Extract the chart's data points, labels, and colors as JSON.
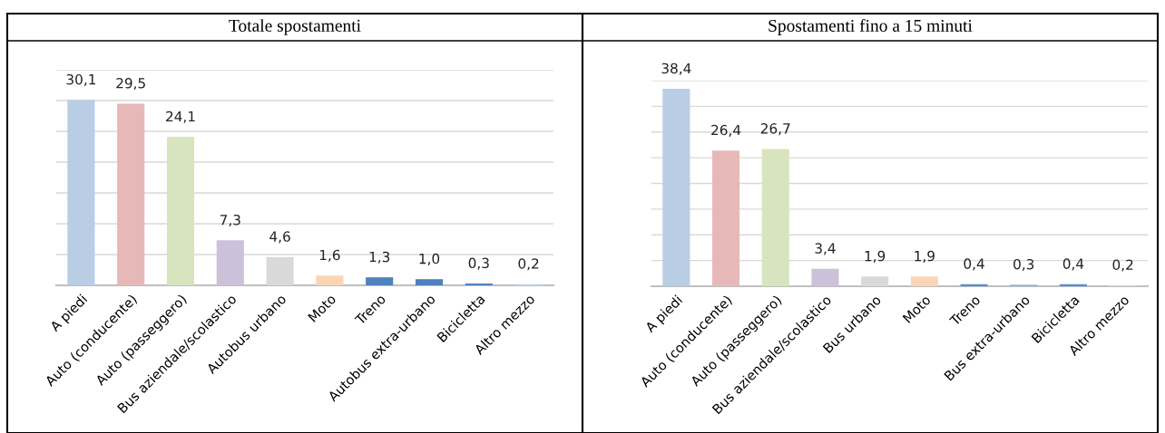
{
  "chart_data": [
    {
      "type": "bar",
      "title": "Totale spostamenti",
      "categories": [
        "A piedi",
        "Auto (conducente)",
        "Auto (passeggero)",
        "Bus aziendale/scolastico",
        "Autobus urbano",
        "Moto",
        "Treno",
        "Autobus extra-urbano",
        "Bicicletta",
        "Altro mezzo"
      ],
      "values": [
        30.1,
        29.5,
        24.1,
        7.3,
        4.6,
        1.6,
        1.3,
        1.0,
        0.3,
        0.2
      ],
      "colors": [
        "#b9cde5",
        "#e6b9b8",
        "#d7e4bd",
        "#ccc1da",
        "#d9d9d9",
        "#fcd5b5",
        "#4f81bd",
        "#4f81bd",
        "#4f81bd",
        "#c6d9f1"
      ],
      "value_labels": [
        "30,1",
        "29,5",
        "24,1",
        "7,3",
        "4,6",
        "1,6",
        "1,3",
        "1,0",
        "0,3",
        "0,2"
      ],
      "ylim": [
        0,
        35
      ],
      "yticks": [
        {
          "value": 0,
          "label": null
        },
        {
          "value": 5,
          "label": null
        },
        {
          "value": 10,
          "label": null
        },
        {
          "value": 15,
          "label": null
        },
        {
          "value": 20,
          "label": null
        },
        {
          "value": 25,
          "label": null
        },
        {
          "value": 30,
          "label": null
        },
        {
          "value": 35,
          "label": null
        }
      ],
      "grid": "y",
      "tick_labels": "x"
    },
    {
      "type": "bar",
      "title": "Spostamenti fino a 15 minuti",
      "categories": [
        "A piedi",
        "Auto (conducente)",
        "Auto (passeggero)",
        "Bus aziendale/scolastico",
        "Bus urbano",
        "Moto",
        "Treno",
        "Bus extra-urbano",
        "Bicicletta",
        "Altro mezzo"
      ],
      "values": [
        38.4,
        26.4,
        26.7,
        3.4,
        1.9,
        1.9,
        0.4,
        0.3,
        0.4,
        0.2
      ],
      "colors": [
        "#b9cde5",
        "#e6b9b8",
        "#d7e4bd",
        "#ccc1da",
        "#d9d9d9",
        "#fcd5b5",
        "#558ed5",
        "#8eb4e3",
        "#558ed5",
        "#c6d9f1"
      ],
      "value_labels": [
        "38,4",
        "26,4",
        "26,7",
        "3,4",
        "1,9",
        "1,9",
        "0,4",
        "0,3",
        "0,4",
        "0,2"
      ],
      "ylim": [
        0,
        40
      ],
      "yticks": [
        {
          "value": 0,
          "label": null
        },
        {
          "value": 5,
          "label": null
        },
        {
          "value": 10,
          "label": null
        },
        {
          "value": 15,
          "label": null
        },
        {
          "value": 20,
          "label": null
        },
        {
          "value": 25,
          "label": null
        },
        {
          "value": 30,
          "label": null
        },
        {
          "value": 35,
          "label": null
        },
        {
          "value": 40,
          "label": null
        }
      ],
      "grid": "y",
      "tick_labels": "x"
    }
  ]
}
